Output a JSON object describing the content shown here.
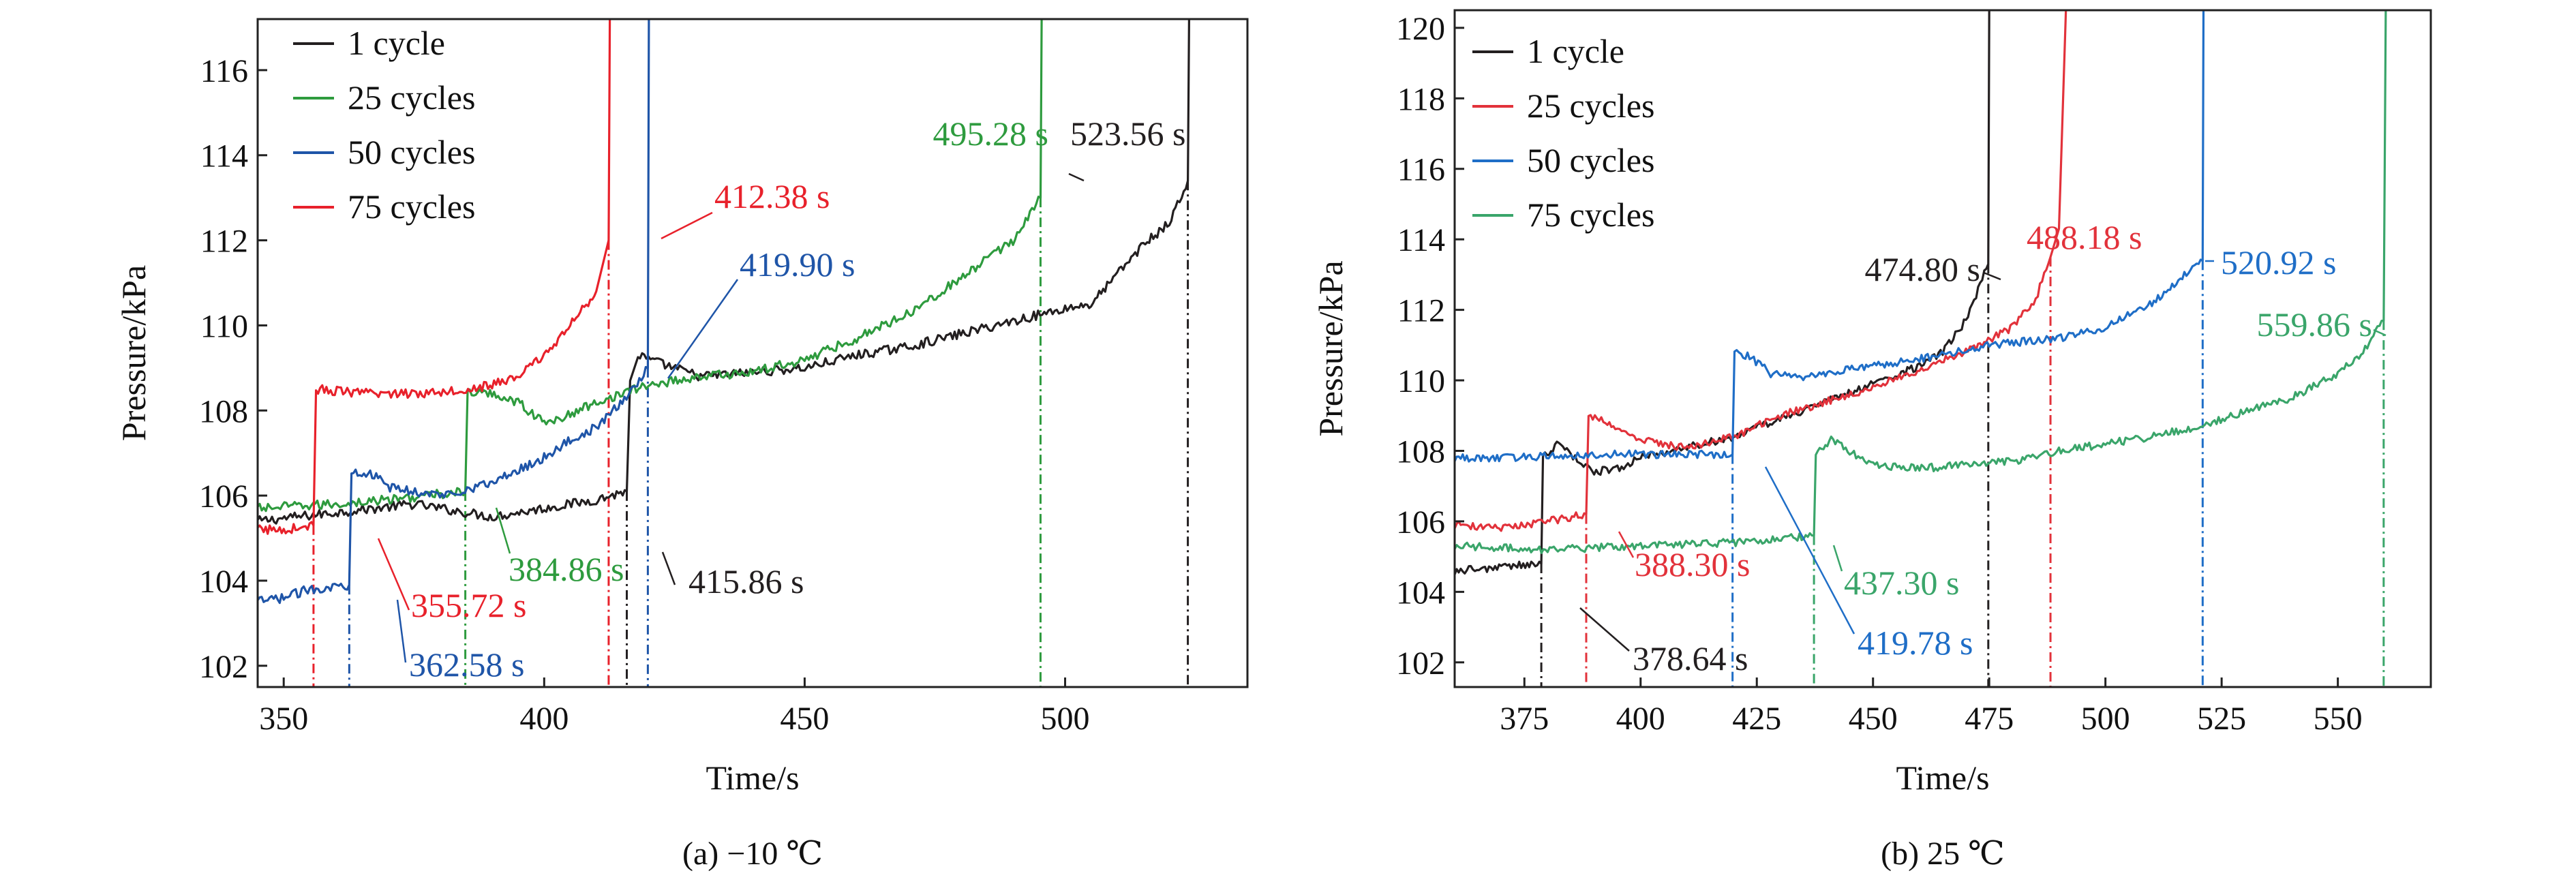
{
  "chart_data": [
    {
      "type": "line",
      "caption": "(a) −10 ℃",
      "xlabel": "Time/s",
      "ylabel": "Pressure/kPa",
      "xlim": [
        345,
        535
      ],
      "ylim": [
        101.5,
        117.2
      ],
      "xticks": [
        350,
        400,
        450,
        500
      ],
      "yticks": [
        102,
        104,
        106,
        108,
        110,
        112,
        114,
        116
      ],
      "grid": false,
      "legend_position": "top-left",
      "series": [
        {
          "name": "1 cycle",
          "color": "#231f20",
          "points": [
            [
              345,
              105.4
            ],
            [
              360,
              105.6
            ],
            [
              375,
              105.8
            ],
            [
              390,
              105.5
            ],
            [
              400,
              105.7
            ],
            [
              410,
              105.9
            ],
            [
              415.86,
              106.1
            ],
            [
              416.5,
              108.7
            ],
            [
              418,
              109.3
            ],
            [
              420,
              109.2
            ],
            [
              430,
              108.8
            ],
            [
              440,
              108.9
            ],
            [
              450,
              109.0
            ],
            [
              460,
              109.3
            ],
            [
              470,
              109.5
            ],
            [
              480,
              109.8
            ],
            [
              490,
              110.1
            ],
            [
              500,
              110.4
            ],
            [
              505,
              110.5
            ],
            [
              510,
              111.2
            ],
            [
              515,
              111.9
            ],
            [
              520,
              112.4
            ],
            [
              523.56,
              113.4
            ],
            [
              523.8,
              117.2
            ]
          ]
        },
        {
          "name": "25 cycles",
          "color": "#2e9b3e",
          "points": [
            [
              345,
              105.7
            ],
            [
              360,
              105.8
            ],
            [
              370,
              105.9
            ],
            [
              384.86,
              106.1
            ],
            [
              385.3,
              108.4
            ],
            [
              390,
              108.4
            ],
            [
              395,
              108.2
            ],
            [
              400,
              107.7
            ],
            [
              405,
              107.9
            ],
            [
              410,
              108.2
            ],
            [
              415,
              108.4
            ],
            [
              420,
              108.6
            ],
            [
              430,
              108.8
            ],
            [
              440,
              108.9
            ],
            [
              450,
              109.2
            ],
            [
              460,
              109.7
            ],
            [
              470,
              110.3
            ],
            [
              480,
              111.1
            ],
            [
              490,
              112.0
            ],
            [
              495.28,
              113.0
            ],
            [
              495.5,
              117.2
            ]
          ]
        },
        {
          "name": "50 cycles",
          "color": "#1f55a8",
          "points": [
            [
              345,
              103.5
            ],
            [
              350,
              103.6
            ],
            [
              355,
              103.8
            ],
            [
              362.58,
              103.9
            ],
            [
              363,
              106.6
            ],
            [
              367,
              106.5
            ],
            [
              370,
              106.2
            ],
            [
              380,
              106.0
            ],
            [
              390,
              106.3
            ],
            [
              400,
              106.9
            ],
            [
              405,
              107.3
            ],
            [
              410,
              107.6
            ],
            [
              415,
              108.2
            ],
            [
              419.9,
              109.0
            ],
            [
              420.1,
              117.2
            ]
          ]
        },
        {
          "name": "75 cycles",
          "color": "#e8212b",
          "points": [
            [
              345,
              105.2
            ],
            [
              350,
              105.2
            ],
            [
              355.72,
              105.3
            ],
            [
              356.2,
              108.5
            ],
            [
              365,
              108.4
            ],
            [
              375,
              108.4
            ],
            [
              385,
              108.5
            ],
            [
              390,
              108.6
            ],
            [
              395,
              108.8
            ],
            [
              400,
              109.3
            ],
            [
              405,
              110.0
            ],
            [
              410,
              110.8
            ],
            [
              412.38,
              112.0
            ],
            [
              412.6,
              117.2
            ]
          ]
        }
      ],
      "annotations": [
        {
          "text": "523.56 s",
          "color": "#231f20",
          "x": 523.56,
          "series": "1 cycle"
        },
        {
          "text": "495.28 s",
          "color": "#2e9b3e",
          "x": 495.28,
          "series": "25 cycles"
        },
        {
          "text": "412.38 s",
          "color": "#e8212b",
          "x": 412.38,
          "series": "75 cycles"
        },
        {
          "text": "419.90 s",
          "color": "#1f55a8",
          "x": 419.9,
          "series": "50 cycles"
        },
        {
          "text": "355.72 s",
          "color": "#e8212b",
          "x": 355.72,
          "series": "75 cycles"
        },
        {
          "text": "384.86 s",
          "color": "#2e9b3e",
          "x": 384.86,
          "series": "25 cycles"
        },
        {
          "text": "415.86 s",
          "color": "#231f20",
          "x": 415.86,
          "series": "1 cycle"
        },
        {
          "text": "362.58 s",
          "color": "#1f55a8",
          "x": 362.58,
          "series": "50 cycles"
        }
      ]
    },
    {
      "type": "line",
      "caption": "(b) 25 ℃",
      "xlabel": "Time/s",
      "ylabel": "Pressure/kPa",
      "xlim": [
        360,
        570
      ],
      "ylim": [
        101.3,
        120.5
      ],
      "xticks": [
        375,
        400,
        425,
        450,
        475,
        500,
        525,
        550
      ],
      "yticks": [
        102,
        104,
        106,
        108,
        110,
        112,
        114,
        116,
        118,
        120
      ],
      "grid": false,
      "legend_position": "top-left",
      "series": [
        {
          "name": "1 cycle",
          "color": "#231f20",
          "points": [
            [
              360,
              104.6
            ],
            [
              370,
              104.7
            ],
            [
              378.64,
              104.8
            ],
            [
              379,
              107.8
            ],
            [
              382,
              108.2
            ],
            [
              385,
              107.9
            ],
            [
              390,
              107.4
            ],
            [
              395,
              107.5
            ],
            [
              400,
              107.8
            ],
            [
              410,
              108.1
            ],
            [
              420,
              108.4
            ],
            [
              430,
              108.9
            ],
            [
              440,
              109.4
            ],
            [
              450,
              109.9
            ],
            [
              460,
              110.4
            ],
            [
              465,
              110.8
            ],
            [
              470,
              111.7
            ],
            [
              474.8,
              113.3
            ],
            [
              475,
              120.5
            ]
          ]
        },
        {
          "name": "25 cycles",
          "color": "#e2323b",
          "points": [
            [
              360,
              105.9
            ],
            [
              370,
              105.8
            ],
            [
              380,
              106.0
            ],
            [
              388.3,
              106.2
            ],
            [
              388.8,
              109.0
            ],
            [
              392,
              108.9
            ],
            [
              395,
              108.6
            ],
            [
              400,
              108.3
            ],
            [
              410,
              108.1
            ],
            [
              420,
              108.4
            ],
            [
              430,
              109.0
            ],
            [
              440,
              109.4
            ],
            [
              450,
              109.8
            ],
            [
              460,
              110.3
            ],
            [
              470,
              110.8
            ],
            [
              480,
              111.5
            ],
            [
              485,
              112.3
            ],
            [
              488.18,
              113.5
            ],
            [
              490,
              114.3
            ],
            [
              491.5,
              120.5
            ]
          ]
        },
        {
          "name": "50 cycles",
          "color": "#1f6ec7",
          "points": [
            [
              360,
              107.8
            ],
            [
              370,
              107.8
            ],
            [
              390,
              107.9
            ],
            [
              410,
              107.9
            ],
            [
              419.78,
              107.9
            ],
            [
              420.2,
              110.8
            ],
            [
              423,
              110.7
            ],
            [
              428,
              110.2
            ],
            [
              435,
              110.1
            ],
            [
              445,
              110.3
            ],
            [
              460,
              110.6
            ],
            [
              475,
              111.0
            ],
            [
              490,
              111.2
            ],
            [
              500,
              111.5
            ],
            [
              510,
              112.2
            ],
            [
              520.92,
              113.4
            ],
            [
              521.1,
              120.5
            ]
          ]
        },
        {
          "name": "75 cycles",
          "color": "#3aa56a",
          "points": [
            [
              360,
              105.3
            ],
            [
              380,
              105.2
            ],
            [
              400,
              105.3
            ],
            [
              420,
              105.4
            ],
            [
              437.3,
              105.6
            ],
            [
              437.7,
              107.9
            ],
            [
              441,
              108.3
            ],
            [
              445,
              108.0
            ],
            [
              450,
              107.6
            ],
            [
              460,
              107.5
            ],
            [
              470,
              107.6
            ],
            [
              480,
              107.7
            ],
            [
              490,
              108.0
            ],
            [
              500,
              108.2
            ],
            [
              510,
              108.4
            ],
            [
              520,
              108.7
            ],
            [
              530,
              109.1
            ],
            [
              540,
              109.5
            ],
            [
              550,
              110.2
            ],
            [
              555,
              110.7
            ],
            [
              559.86,
              111.7
            ],
            [
              560.3,
              120.5
            ]
          ]
        }
      ],
      "annotations": [
        {
          "text": "474.80 s",
          "color": "#231f20",
          "x": 474.8,
          "series": "1 cycle"
        },
        {
          "text": "488.18 s",
          "color": "#e2323b",
          "x": 488.18,
          "series": "25 cycles"
        },
        {
          "text": "520.92 s",
          "color": "#1f6ec7",
          "x": 520.92,
          "series": "50 cycles"
        },
        {
          "text": "559.86 s",
          "color": "#3aa56a",
          "x": 559.86,
          "series": "75 cycles"
        },
        {
          "text": "388.30 s",
          "color": "#e2323b",
          "x": 388.3,
          "series": "25 cycles"
        },
        {
          "text": "437.30 s",
          "color": "#3aa56a",
          "x": 437.3,
          "series": "75 cycles"
        },
        {
          "text": "419.78 s",
          "color": "#1f6ec7",
          "x": 419.78,
          "series": "50 cycles"
        },
        {
          "text": "378.64 s",
          "color": "#231f20",
          "x": 378.64,
          "series": "1 cycle"
        }
      ]
    }
  ]
}
